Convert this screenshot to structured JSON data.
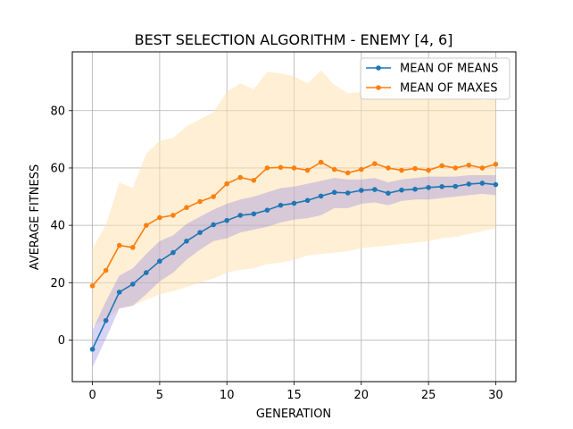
{
  "chart_data": {
    "type": "line",
    "title": "BEST SELECTION ALGORITHM - ENEMY [4, 6]",
    "xlabel": "GENERATION",
    "ylabel": "AVERAGE FITNESS",
    "xlim": [
      -1.5,
      31.5
    ],
    "ylim": [
      -14.5,
      100.5
    ],
    "xticks": [
      0,
      5,
      10,
      15,
      20,
      25,
      30
    ],
    "yticks": [
      0,
      20,
      40,
      60,
      80
    ],
    "grid": true,
    "legend_position": "top-right",
    "x": [
      0,
      1,
      2,
      3,
      4,
      5,
      6,
      7,
      8,
      9,
      10,
      11,
      12,
      13,
      14,
      15,
      16,
      17,
      18,
      19,
      20,
      21,
      22,
      23,
      24,
      25,
      26,
      27,
      28,
      29,
      30
    ],
    "series": [
      {
        "name": "MEAN OF MEANS",
        "color": "#1f77b4",
        "band_color": "#7b6fe0",
        "values": [
          -3.2,
          6.8,
          16.7,
          19.5,
          23.5,
          27.5,
          30.5,
          34.5,
          37.5,
          40.2,
          41.7,
          43.5,
          44.0,
          45.3,
          47.0,
          47.7,
          48.7,
          50.2,
          51.5,
          51.3,
          52.2,
          52.5,
          51.2,
          52.3,
          52.6,
          53.2,
          53.5,
          53.6,
          54.4,
          54.7,
          54.2
        ],
        "lower": [
          -9.5,
          0.5,
          11.0,
          12.0,
          16.0,
          20.5,
          23.5,
          28.0,
          31.5,
          34.5,
          35.5,
          37.5,
          38.5,
          39.5,
          41.0,
          42.0,
          42.5,
          43.5,
          46.0,
          46.0,
          47.5,
          48.0,
          47.0,
          48.5,
          49.0,
          49.0,
          49.5,
          50.0,
          50.5,
          51.0,
          50.5
        ],
        "upper": [
          3.5,
          13.5,
          22.5,
          25.0,
          30.0,
          34.5,
          36.5,
          40.5,
          43.0,
          45.5,
          47.5,
          49.0,
          50.0,
          51.5,
          53.0,
          53.5,
          54.5,
          55.5,
          56.5,
          56.0,
          56.0,
          56.5,
          55.0,
          56.0,
          56.5,
          57.0,
          57.0,
          57.0,
          57.5,
          57.5,
          57.5
        ]
      },
      {
        "name": "MEAN OF MAXES",
        "color": "#ff7f0e",
        "band_color": "#ffe2b3",
        "values": [
          18.9,
          24.3,
          33.0,
          32.3,
          40.0,
          42.7,
          43.5,
          46.2,
          48.3,
          50.0,
          54.5,
          56.7,
          55.7,
          60.0,
          60.2,
          60.0,
          59.2,
          62.0,
          59.5,
          58.3,
          59.5,
          61.5,
          60.0,
          59.2,
          59.8,
          59.2,
          60.8,
          60.0,
          61.0,
          60.0,
          61.3
        ],
        "lower": [
          5.0,
          7.0,
          11.0,
          12.0,
          14.0,
          16.0,
          17.0,
          18.5,
          20.0,
          21.5,
          23.5,
          24.5,
          25.0,
          26.5,
          27.0,
          28.0,
          29.5,
          30.0,
          30.5,
          31.0,
          32.0,
          32.5,
          33.0,
          33.5,
          34.0,
          34.5,
          35.5,
          36.0,
          37.0,
          38.0,
          39.0
        ],
        "upper": [
          32.0,
          40.0,
          55.0,
          53.0,
          65.0,
          69.5,
          70.5,
          74.5,
          77.0,
          79.5,
          86.5,
          89.5,
          87.5,
          93.5,
          93.0,
          92.0,
          89.5,
          94.0,
          89.0,
          86.0,
          86.5,
          90.0,
          86.5,
          85.0,
          86.0,
          84.5,
          86.0,
          84.5,
          85.0,
          83.5,
          84.0
        ]
      }
    ]
  }
}
